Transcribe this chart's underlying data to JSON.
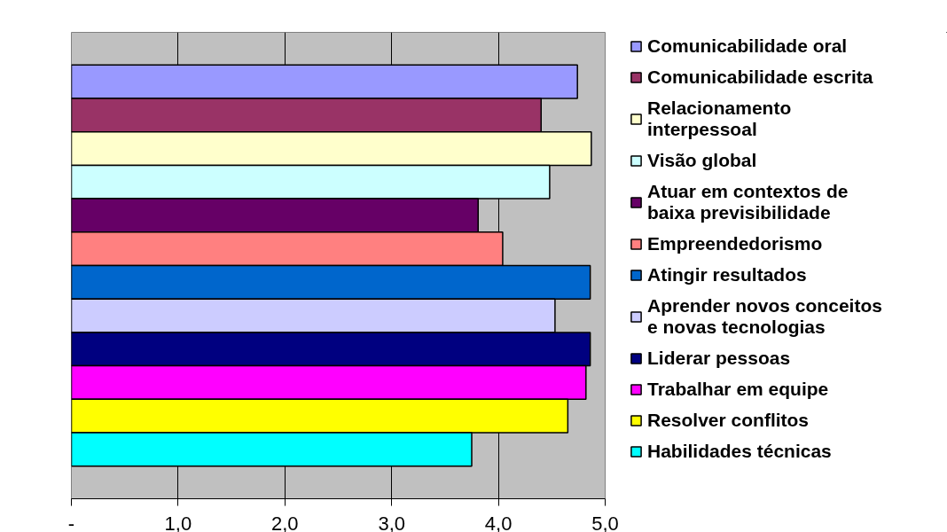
{
  "chart_data": {
    "type": "bar",
    "orientation": "horizontal",
    "categories": [
      null
    ],
    "series": [
      {
        "name": "Comunicabilidade oral",
        "color": "#9999ff",
        "values": [
          4.74
        ]
      },
      {
        "name": "Comunicabilidade escrita",
        "color": "#993366",
        "values": [
          4.4
        ]
      },
      {
        "name": "Relacionamento interpessoal",
        "color": "#ffffcc",
        "values": [
          4.87
        ]
      },
      {
        "name": "Visão global",
        "color": "#ccffff",
        "values": [
          4.48
        ]
      },
      {
        "name": "Atuar em contextos de baixa previsibilidade",
        "color": "#660066",
        "values": [
          3.81
        ]
      },
      {
        "name": "Empreendedorismo",
        "color": "#ff8080",
        "values": [
          4.04
        ]
      },
      {
        "name": "Atingir resultados",
        "color": "#0066cc",
        "values": [
          4.86
        ]
      },
      {
        "name": "Aprender novos conceitos e novas tecnologias",
        "color": "#ccccff",
        "values": [
          4.53
        ]
      },
      {
        "name": "Liderar pessoas",
        "color": "#000080",
        "values": [
          4.86
        ]
      },
      {
        "name": "Trabalhar em equipe",
        "color": "#ff00ff",
        "values": [
          4.82
        ]
      },
      {
        "name": "Resolver conflitos",
        "color": "#ffff00",
        "values": [
          4.65
        ]
      },
      {
        "name": "Habilidades técnicas",
        "color": "#00ffff",
        "values": [
          3.75
        ]
      }
    ],
    "xlim": [
      0,
      5
    ],
    "xticks": [
      {
        "value": 0,
        "label": "-"
      },
      {
        "value": 1,
        "label": "1,0"
      },
      {
        "value": 2,
        "label": "2,0"
      },
      {
        "value": 3,
        "label": "3,0"
      },
      {
        "value": 4,
        "label": "4,0"
      },
      {
        "value": 5,
        "label": "5,0"
      }
    ],
    "grid": "x",
    "legend": "right"
  }
}
